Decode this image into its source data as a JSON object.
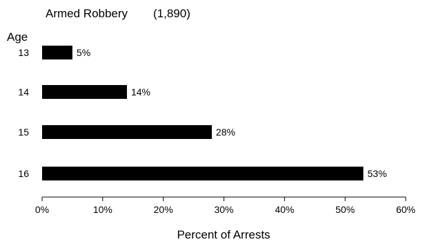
{
  "chart_data": {
    "type": "bar",
    "orientation": "horizontal",
    "title": "Armed Robbery",
    "subtitle": "(1,890)",
    "ylabel": "Age",
    "xlabel": "Percent of Arrests",
    "categories": [
      "13",
      "14",
      "15",
      "16"
    ],
    "values": [
      5,
      14,
      28,
      53
    ],
    "data_labels": [
      "5%",
      "14%",
      "28%",
      "53%"
    ],
    "xlim": [
      0,
      60
    ],
    "xticks": [
      0,
      10,
      20,
      30,
      40,
      50,
      60
    ],
    "xtick_labels": [
      "0%",
      "10%",
      "20%",
      "30%",
      "40%",
      "50%",
      "60%"
    ],
    "grid": false,
    "bar_color": "#000000"
  }
}
